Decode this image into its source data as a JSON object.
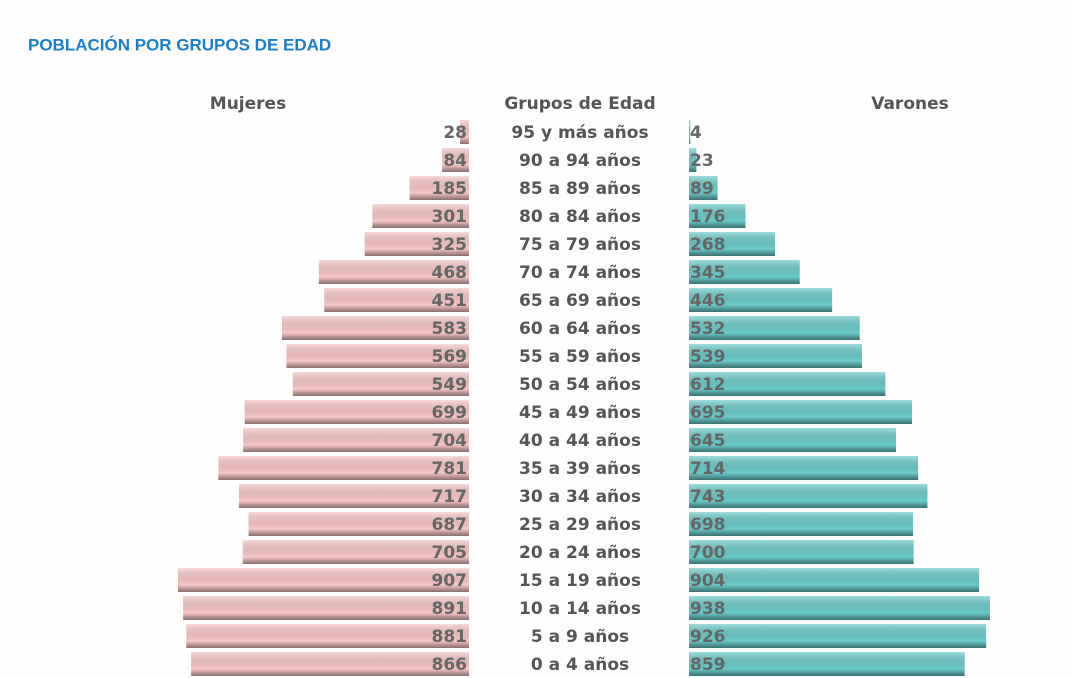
{
  "chart_data": {
    "type": "pyramid",
    "title": "POBLACIÓN POR GRUPOS DE EDAD",
    "category_label": "Grupos de Edad",
    "categories": [
      "95 y más años",
      "90 a 94 años",
      "85 a 89 años",
      "80 a 84 años",
      "75 a 79 años",
      "70 a 74 años",
      "65 a 69 años",
      "60 a 64 años",
      "55 a 59 años",
      "50 a 54 años",
      "45 a 49 años",
      "40 a 44 años",
      "35 a 39 años",
      "30 a 34 años",
      "25 a 29 años",
      "20 a 24 años",
      "15 a 19 años",
      "10 a 14 años",
      "5 a 9 años",
      "0 a 4 años"
    ],
    "series": [
      {
        "name": "Mujeres",
        "color": "#f7c6c6",
        "values": [
          28,
          84,
          185,
          301,
          325,
          468,
          451,
          583,
          569,
          549,
          699,
          704,
          781,
          717,
          687,
          705,
          907,
          891,
          881,
          866
        ]
      },
      {
        "name": "Varones",
        "color": "#6ccaca",
        "values": [
          4,
          23,
          89,
          176,
          268,
          345,
          446,
          532,
          539,
          612,
          695,
          645,
          714,
          743,
          698,
          700,
          904,
          938,
          926,
          859
        ]
      }
    ]
  }
}
